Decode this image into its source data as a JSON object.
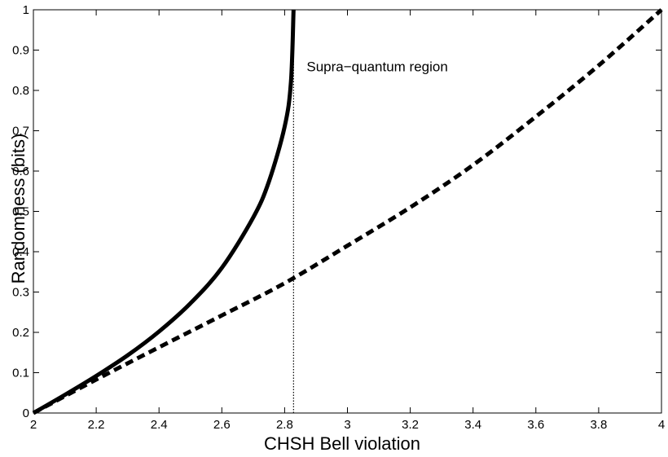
{
  "chart_data": {
    "type": "line",
    "title": "",
    "xlabel": "CHSH Bell violation",
    "ylabel": "Randomness (bits)",
    "xlim": [
      2,
      4
    ],
    "ylim": [
      0,
      1
    ],
    "xticks": [
      2,
      2.2,
      2.4,
      2.6,
      2.8,
      3,
      3.2,
      3.4,
      3.6,
      3.8,
      4
    ],
    "xtick_labels": [
      "2",
      "2.2",
      "2.4",
      "2.6",
      "2.8",
      "3",
      "3.2",
      "3.4",
      "3.6",
      "3.8",
      "4"
    ],
    "yticks": [
      0,
      0.1,
      0.2,
      0.3,
      0.4,
      0.5,
      0.6,
      0.7,
      0.8,
      0.9,
      1
    ],
    "ytick_labels": [
      "0",
      "0.1",
      "0.2",
      "0.3",
      "0.4",
      "0.5",
      "0.6",
      "0.7",
      "0.8",
      "0.9",
      "1"
    ],
    "grid": false,
    "legend": "none",
    "annotations": [
      {
        "text": "Supra−quantum region",
        "x": 2.87,
        "y": 0.86
      }
    ],
    "vertical_line": {
      "x": 2.8284,
      "style": "dotted"
    },
    "series": [
      {
        "style": "solid",
        "color": "#000000",
        "x": [
          2.0,
          2.1,
          2.2,
          2.3,
          2.4,
          2.5,
          2.6,
          2.7,
          2.75,
          2.8,
          2.82,
          2.8284
        ],
        "y": [
          0.0,
          0.045,
          0.092,
          0.143,
          0.202,
          0.272,
          0.36,
          0.485,
          0.574,
          0.71,
          0.82,
          1.0
        ]
      },
      {
        "style": "dashed",
        "color": "#000000",
        "x": [
          2.0,
          2.2,
          2.4,
          2.6,
          2.8,
          3.0,
          3.2,
          3.4,
          3.6,
          3.8,
          4.0
        ],
        "y": [
          0.0,
          0.083,
          0.163,
          0.242,
          0.322,
          0.415,
          0.51,
          0.615,
          0.735,
          0.862,
          1.0
        ]
      }
    ]
  }
}
